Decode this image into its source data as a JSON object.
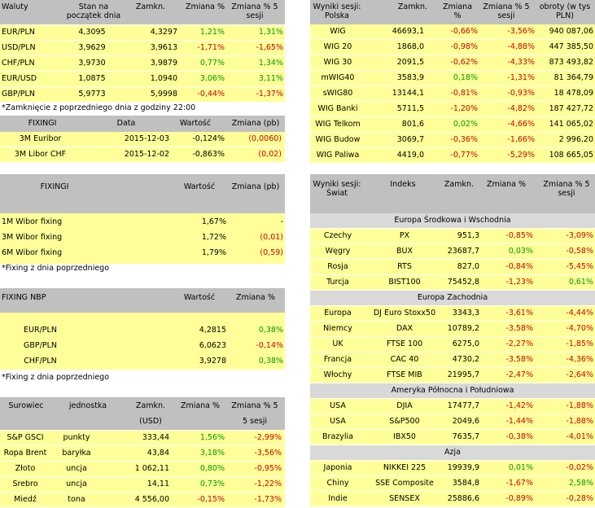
{
  "waluty": {
    "headers": [
      "Waluty",
      "Stan na\npoczątek dnia",
      "Zamkn.",
      "Zmiana %",
      "Zmiana % 5\nsesji"
    ],
    "rows": [
      [
        "EUR/PLN",
        "4,3095",
        "4,3297",
        "1,21%",
        "1,31%"
      ],
      [
        "USD/PLN",
        "3,9629",
        "3,9613",
        "-1,71%",
        "-1,65%"
      ],
      [
        "CHF/PLN",
        "3,9730",
        "3,9879",
        "0,77%",
        "1,34%"
      ],
      [
        "EUR/USD",
        "1,0875",
        "1,0940",
        "3,06%",
        "3,11%"
      ],
      [
        "GBP/PLN",
        "5,9773",
        "5,9998",
        "-0,44%",
        "-1,37%"
      ]
    ],
    "note": "*Zamknięcie z poprzedniego dnia z godziny 22:00"
  },
  "fixing1": {
    "headers": [
      "FIXINGI",
      "Data",
      "Wartość",
      "Zmiana (pb)"
    ],
    "rows": [
      [
        "3M Euribor",
        "2015-12-03",
        "-0,124%",
        "(0,0060)"
      ],
      [
        "3M Libor CHF",
        "2015-12-02",
        "-0,863%",
        "(0,02)"
      ]
    ]
  },
  "fixing2": {
    "headers": [
      "FIXINGI",
      "Wartość",
      "Zmiana (pb)"
    ],
    "rows": [
      [
        "1M Wibor fixing",
        "1,67%",
        "-"
      ],
      [
        "3M Wibor fixing",
        "1,72%",
        "(0,01)"
      ],
      [
        "6M Wibor fixing",
        "1,79%",
        "(0,59)"
      ]
    ],
    "note": "*Fixing z dnia poprzedniego"
  },
  "nbp": {
    "headers": [
      "FIXING NBP",
      "Wartość",
      "Zmiana %"
    ],
    "rows": [
      [
        "EUR/PLN",
        "4,2815",
        "0,38%"
      ],
      [
        "GBP/PLN",
        "6,0623",
        "-0,14%"
      ],
      [
        "CHF/PLN",
        "3,9278",
        "0,38%"
      ]
    ],
    "note": "*Fixing z dnia poprzedniego"
  },
  "surowce": {
    "headers": [
      "Surowiec",
      "jednostka",
      "Zamkn.",
      "Zmiana %",
      "Zmiana % 5"
    ],
    "subheaders": [
      "(USD)",
      "5 sesji"
    ],
    "rows": [
      [
        "S&P GSCI",
        "punkty",
        "333,44",
        "1,56%",
        "-2,99%"
      ],
      [
        "Ropa Brent",
        "baryłka",
        "43,84",
        "3,18%",
        "-3,56%"
      ],
      [
        "Złoto",
        "uncja",
        "1 062,11",
        "0,80%",
        "-0,95%"
      ],
      [
        "Srebro",
        "uncja",
        "14,11",
        "0,73%",
        "-1,22%"
      ],
      [
        "Miedź",
        "tona",
        "4 556,00",
        "-0,15%",
        "-1,73%"
      ]
    ]
  },
  "polska": {
    "headers": [
      "Wyniki sesji:\nPolska",
      "Zamkn.",
      "Zmiana\n%",
      "Zmiana % 5\nsesji",
      "obroty (w tys\nPLN)"
    ],
    "rows": [
      [
        "WIG",
        "46693,1",
        "-0,66%",
        "-3,56%",
        "940 087,06"
      ],
      [
        "WIG 20",
        "1868,0",
        "-0,98%",
        "-4,88%",
        "447 385,50"
      ],
      [
        "WIG 30",
        "2091,5",
        "-0,62%",
        "-4,33%",
        "873 493,82"
      ],
      [
        "mWIG40",
        "3583,9",
        "0,18%",
        "-1,31%",
        "81 364,79"
      ],
      [
        "sWIG80",
        "13144,1",
        "-0,81%",
        "-0,93%",
        "18 478,09"
      ],
      [
        "WIG Banki",
        "5711,5",
        "-1,20%",
        "-4,82%",
        "187 427,72"
      ],
      [
        "WIG Telkom",
        "801,6",
        "0,02%",
        "-4,66%",
        "141 065,02"
      ],
      [
        "WIG Budow",
        "3069,7",
        "-0,36%",
        "-1,66%",
        "2 996,20"
      ],
      [
        "WIG Paliwa",
        "4419,0",
        "-0,77%",
        "-5,29%",
        "108 665,05"
      ]
    ]
  },
  "swiat": {
    "headers": [
      "Wyniki sesji:\nŚwiat",
      "Indeks",
      "Zamkn.",
      "Zmiana %",
      "Zmiana % 5\nsesji"
    ],
    "groups": [
      {
        "name": "Europa Środkowa i Wschodnia",
        "rows": [
          [
            "Czechy",
            "PX",
            "951,3",
            "-0,85%",
            "-3,09%"
          ],
          [
            "Węgry",
            "BUX",
            "23687,7",
            "0,03%",
            "-0,58%"
          ],
          [
            "Rosja",
            "RTS",
            "827,0",
            "-0,84%",
            "-5,45%"
          ],
          [
            "Turcja",
            "BIST100",
            "75452,8",
            "-1,23%",
            "0,61%"
          ]
        ]
      },
      {
        "name": "Europa Zachodnia",
        "rows": [
          [
            "Europa",
            "DJ Euro Stoxx50",
            "3343,3",
            "-3,61%",
            "-4,44%"
          ],
          [
            "Niemcy",
            "DAX",
            "10789,2",
            "-3,58%",
            "-4,70%"
          ],
          [
            "UK",
            "FTSE 100",
            "6275,0",
            "-2,27%",
            "-1,85%"
          ],
          [
            "Francja",
            "CAC 40",
            "4730,2",
            "-3,58%",
            "-4,36%"
          ],
          [
            "Włochy",
            "FTSE MIB",
            "21995,7",
            "-2,47%",
            "-2,64%"
          ]
        ]
      },
      {
        "name": "Ameryka Północna i Południowa",
        "rows": [
          [
            "USA",
            "DJIA",
            "17477,7",
            "-1,42%",
            "-1,88%"
          ],
          [
            "USA",
            "S&P500",
            "2049,6",
            "-1,44%",
            "-1,88%"
          ],
          [
            "Brazylia",
            "IBX50",
            "7635,7",
            "-0,38%",
            "-4,01%"
          ]
        ]
      },
      {
        "name": "Azja",
        "rows": [
          [
            "Japonia",
            "NIKKEI 225",
            "19939,9",
            "0,01%",
            "-0,02%"
          ],
          [
            "Chiny",
            "SSE Composite",
            "3584,8",
            "-1,67%",
            "2,58%"
          ],
          [
            "Indie",
            "SENSEX",
            "25886,6",
            "-0,89%",
            "-0,28%"
          ]
        ]
      }
    ]
  },
  "colors": {
    "header": "#c0c0c0",
    "row": "#ffff99",
    "band": "#d9d9d9",
    "positive": "#009900",
    "negative": "#cc0000"
  }
}
